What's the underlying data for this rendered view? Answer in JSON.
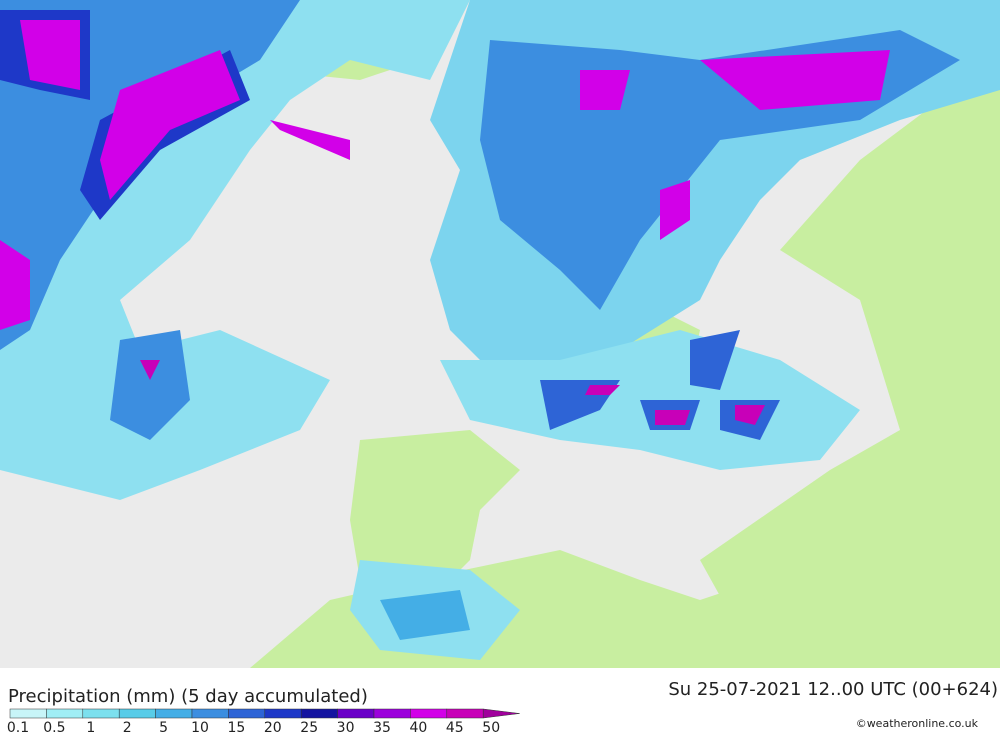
{
  "header": {
    "title": "Precipitation (mm) (5 day accumulated)",
    "valid_time": "Su 25-07-2021 12..00 UTC (00+624)"
  },
  "legend": {
    "levels": [
      0.1,
      0.5,
      1,
      2,
      5,
      10,
      15,
      20,
      25,
      30,
      35,
      40,
      45,
      50
    ],
    "colors": [
      "#c8f5f8",
      "#a0eef5",
      "#7ce0ee",
      "#58cce8",
      "#44aee6",
      "#3c8ee0",
      "#2e64d6",
      "#1e38c8",
      "#1414a0",
      "#6a00c8",
      "#9c00dc",
      "#d200e8",
      "#c800b8",
      "#a0009c"
    ]
  },
  "credit": "©weatheronline.co.uk"
}
